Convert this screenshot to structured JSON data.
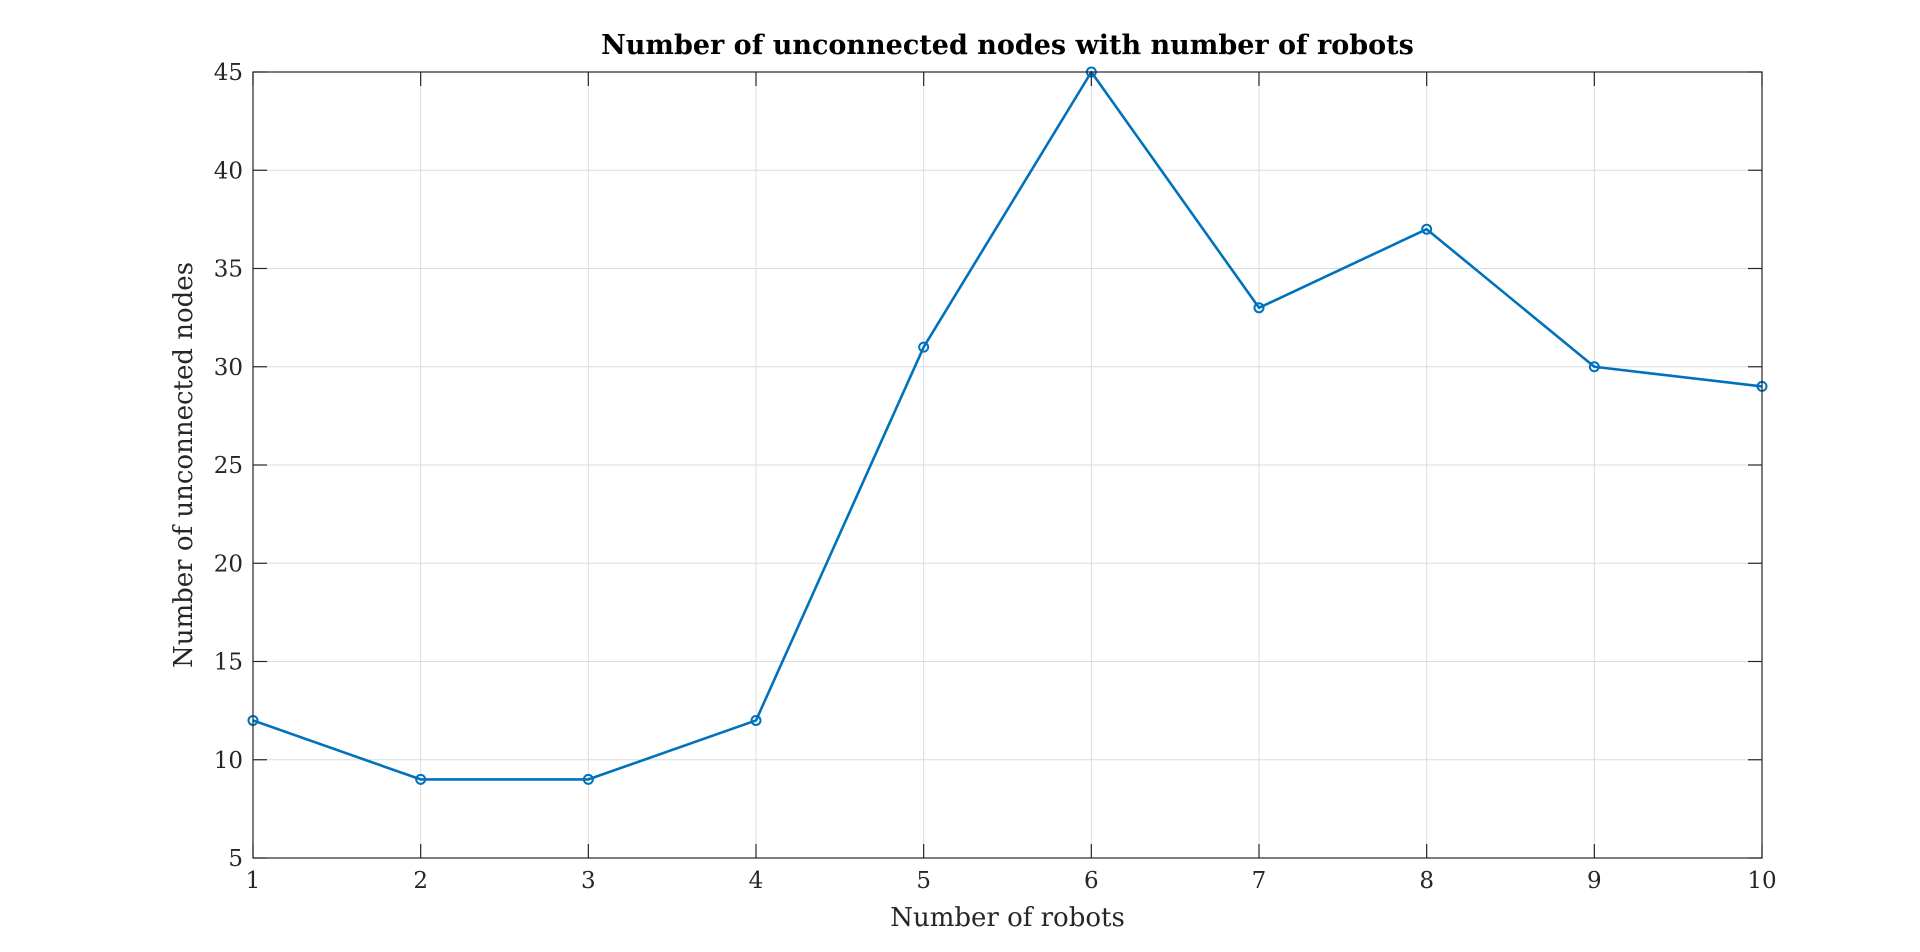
{
  "chart_data": {
    "type": "line",
    "title": "Number of unconnected nodes with number of robots",
    "xlabel": "Number of robots",
    "ylabel": "Number of unconnected nodes",
    "xlim": [
      1,
      10
    ],
    "ylim": [
      5,
      45
    ],
    "xticks": [
      1,
      2,
      3,
      4,
      5,
      6,
      7,
      8,
      9,
      10
    ],
    "yticks": [
      5,
      10,
      15,
      20,
      25,
      30,
      35,
      40,
      45
    ],
    "grid": true,
    "series": [
      {
        "x": [
          1,
          2,
          3,
          4,
          5,
          6,
          7,
          8,
          9,
          10
        ],
        "values": [
          12,
          9,
          9,
          12,
          31,
          45,
          33,
          37,
          30,
          29
        ],
        "color": "#0072BD",
        "marker": "circle"
      }
    ]
  }
}
